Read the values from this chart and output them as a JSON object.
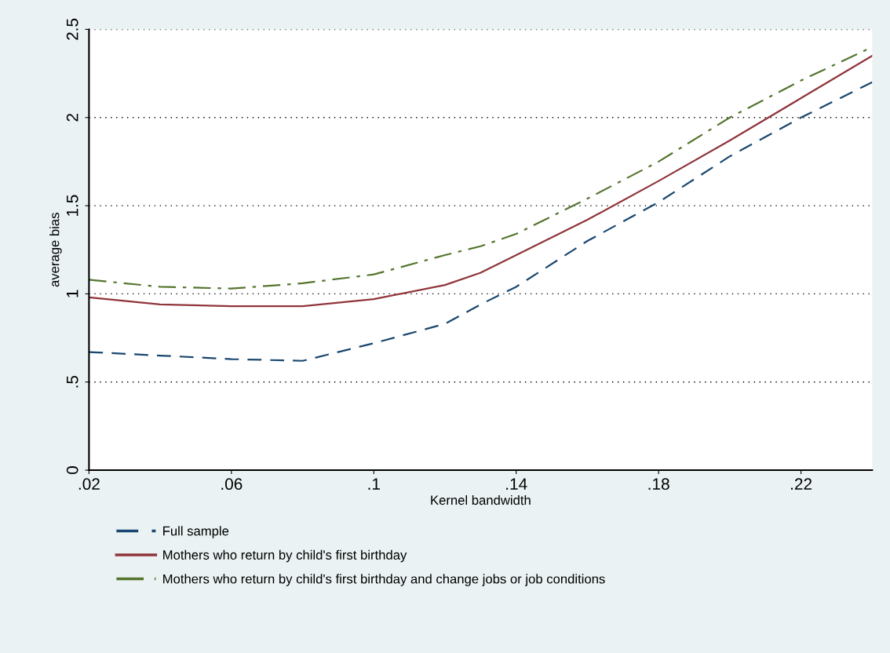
{
  "chart_data": {
    "type": "line",
    "xlabel": "Kernel bandwidth",
    "ylabel": "average bias",
    "x": [
      0.02,
      0.04,
      0.06,
      0.08,
      0.1,
      0.12,
      0.13,
      0.14,
      0.16,
      0.18,
      0.2,
      0.22,
      0.24
    ],
    "series": [
      {
        "name": "Full sample",
        "color": "#1a476f",
        "line_style": "dashed",
        "values": [
          0.67,
          0.65,
          0.63,
          0.62,
          0.72,
          0.83,
          0.94,
          1.04,
          1.3,
          1.52,
          1.78,
          2.0,
          2.2
        ]
      },
      {
        "name": "Mothers who return by child's first birthday",
        "color": "#90353b",
        "line_style": "solid",
        "values": [
          0.98,
          0.94,
          0.93,
          0.93,
          0.97,
          1.05,
          1.12,
          1.22,
          1.42,
          1.64,
          1.87,
          2.11,
          2.35
        ]
      },
      {
        "name": "Mothers who return by child's first birthday and change jobs or job conditions",
        "color": "#55752f",
        "line_style": "dashdot",
        "values": [
          1.08,
          1.04,
          1.03,
          1.06,
          1.11,
          1.22,
          1.27,
          1.34,
          1.54,
          1.75,
          2.0,
          2.21,
          2.4
        ]
      }
    ],
    "xlim": [
      0.02,
      0.24
    ],
    "xticks": [
      {
        "value": 0.02,
        "label": ".02"
      },
      {
        "value": 0.06,
        "label": ".06"
      },
      {
        "value": 0.1,
        "label": ".1"
      },
      {
        "value": 0.14,
        "label": ".14"
      },
      {
        "value": 0.18,
        "label": ".18"
      },
      {
        "value": 0.22,
        "label": ".22"
      }
    ],
    "ylim": [
      0,
      2.5
    ],
    "yticks": [
      0,
      {
        "value": 0.5,
        "label": ".5"
      },
      1,
      1.5,
      2,
      2.5
    ],
    "grid": "y",
    "legend": "bottom",
    "marker": "none"
  }
}
